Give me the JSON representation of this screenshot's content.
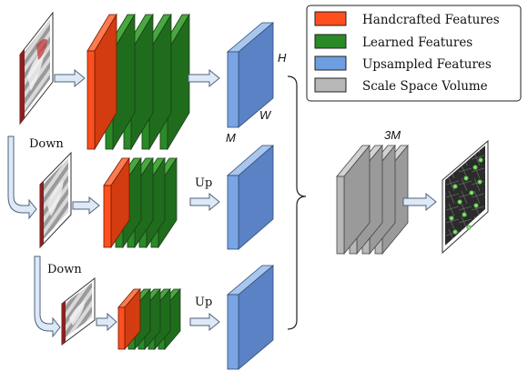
{
  "legend": {
    "items": [
      {
        "label": "Handcrafted Features",
        "color": "#ff4f1f"
      },
      {
        "label": "Learned Features",
        "color": "#2a8a27"
      },
      {
        "label": "Upsampled Features",
        "color": "#6f9ee0"
      },
      {
        "label": "Scale Space Volume",
        "color": "#b8b8b8"
      }
    ]
  },
  "labels": {
    "down_1": "Down",
    "down_2": "Down",
    "up_1": "Up",
    "up_2": "Up",
    "dim_h": "H",
    "dim_w": "W",
    "dim_m": "M",
    "dim_3m": "3M"
  },
  "colors": {
    "handcrafted": "#ff4f1f",
    "learned": "#2a8a27",
    "upsampled": "#6f9ee0",
    "scale_volume": "#b8b8b8",
    "arrow_fill": "#dde9f7",
    "arrow_stroke": "#4d6278"
  }
}
